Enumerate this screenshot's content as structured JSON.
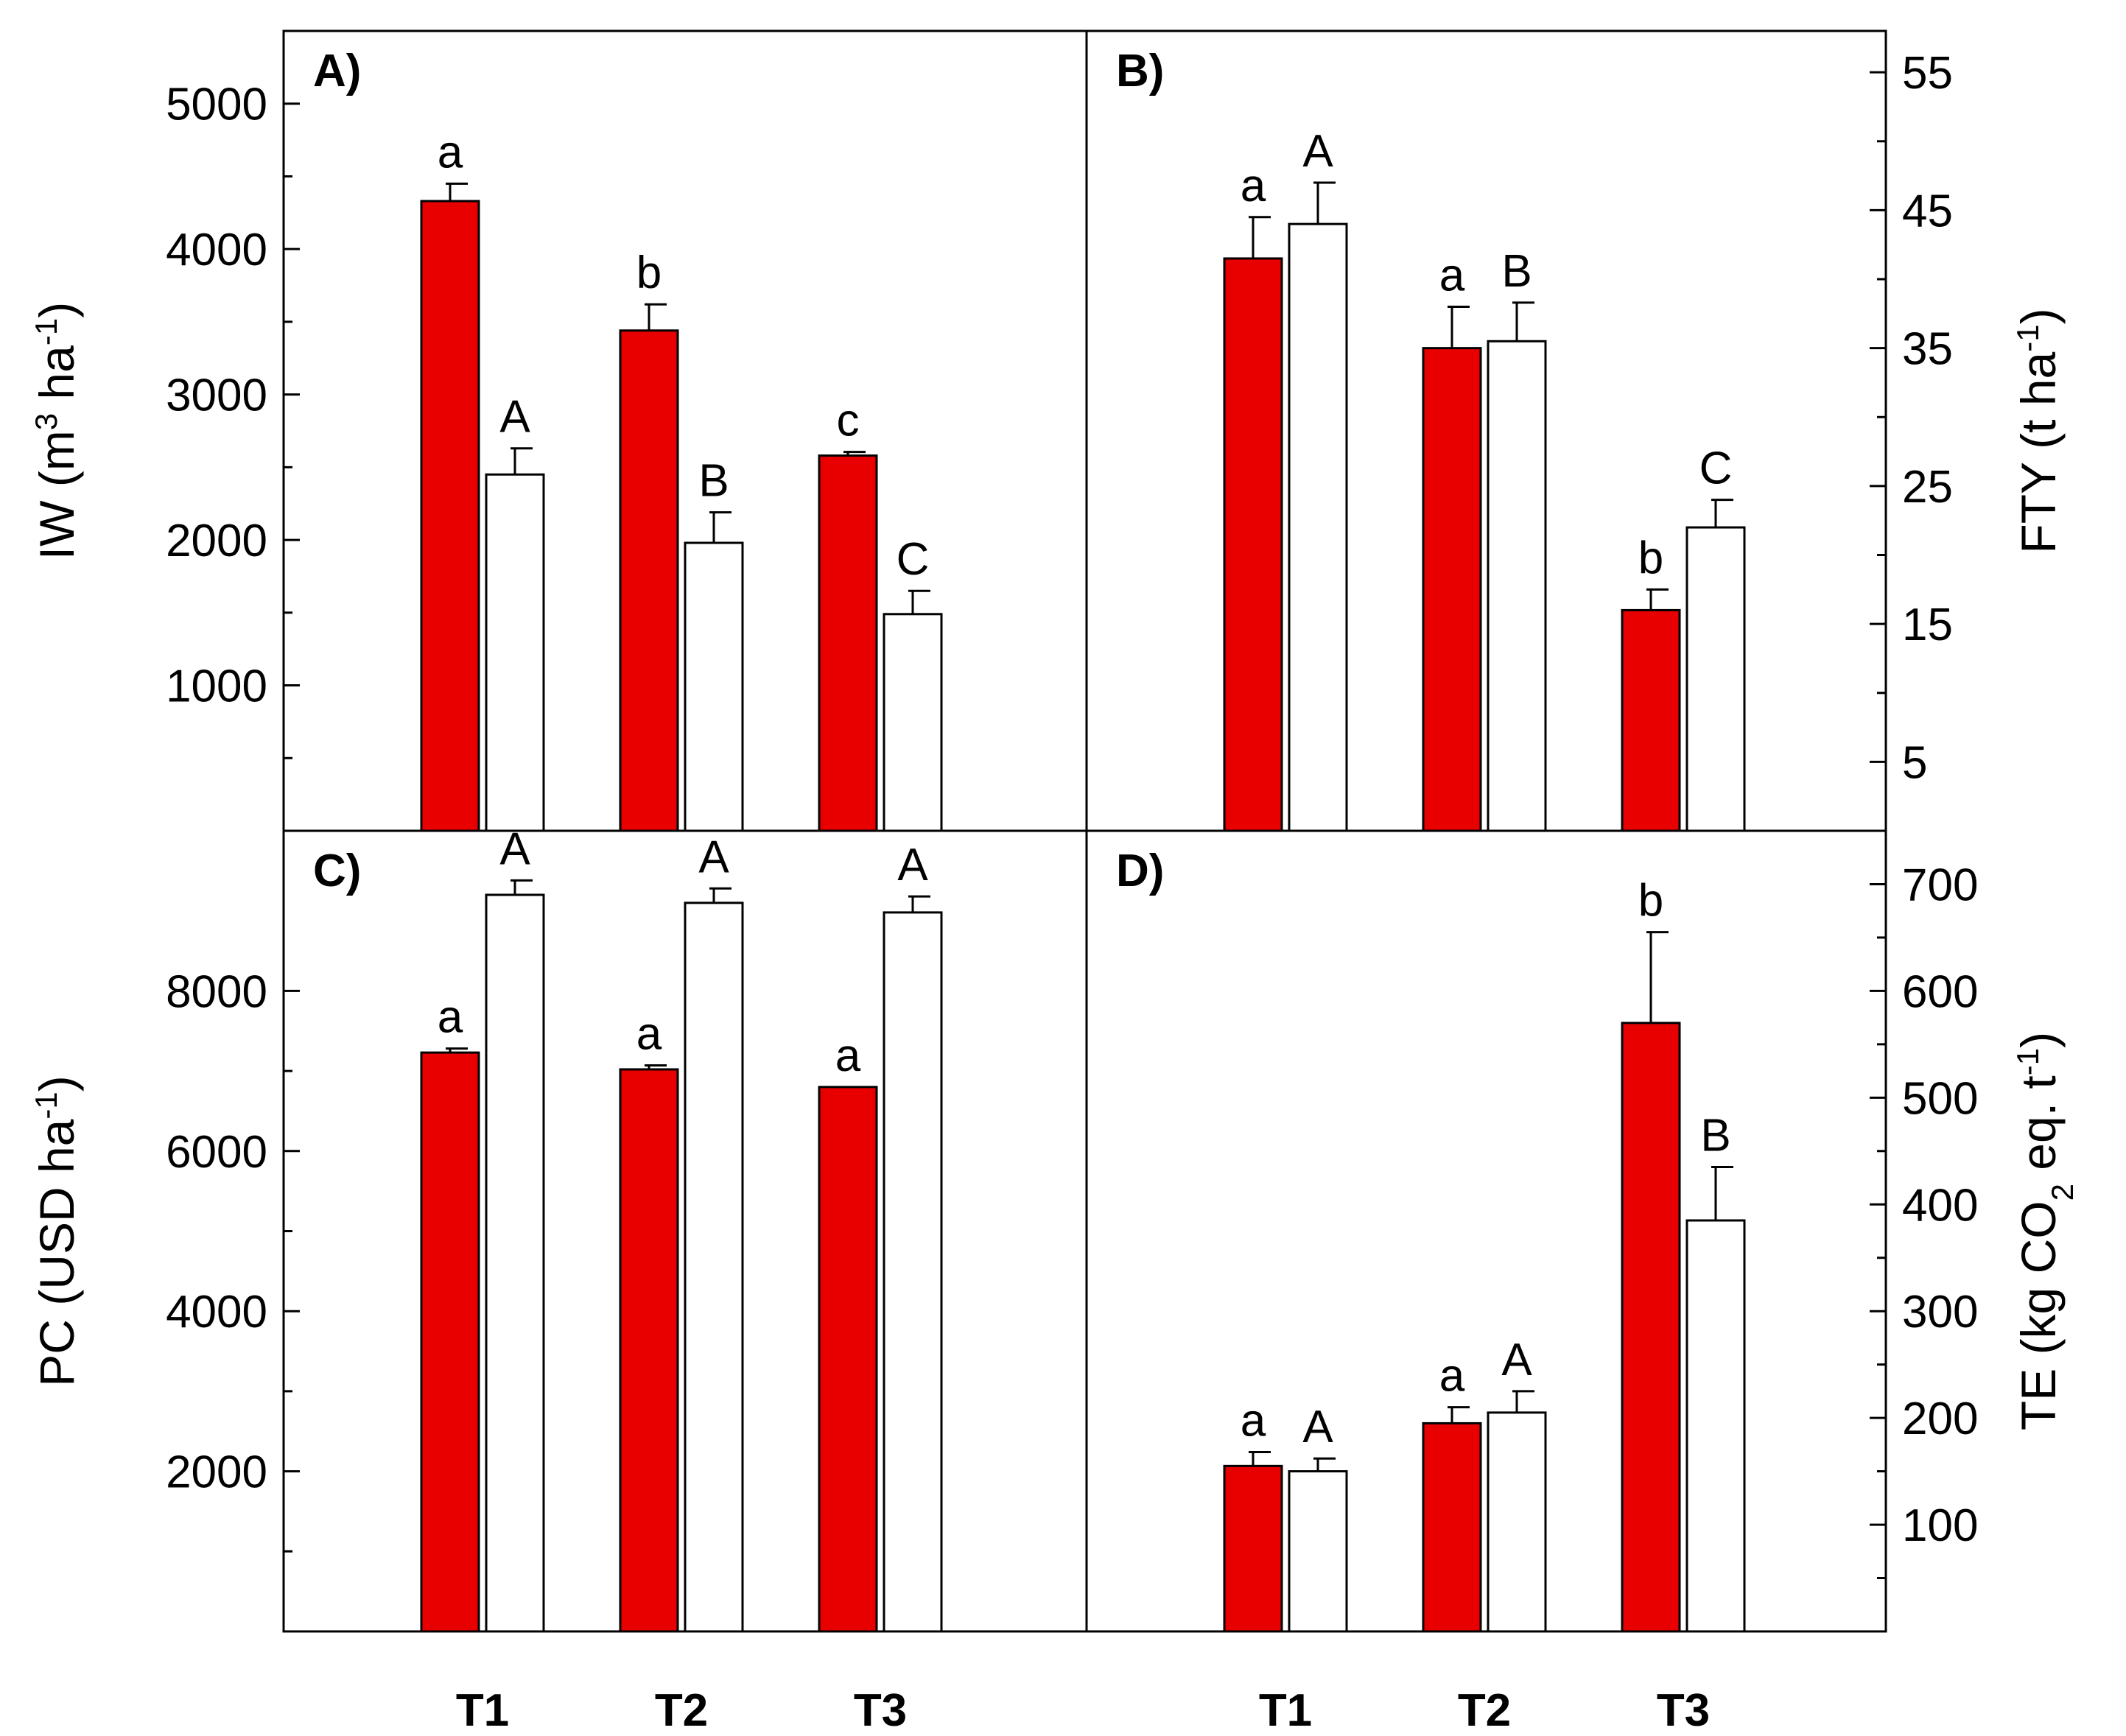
{
  "chart_data": [
    {
      "id": "A",
      "type": "bar",
      "panel_label": "A)",
      "ylabel": "IW (m³ ha⁻¹)",
      "ylabel_parts": [
        "IW (m",
        "3",
        " ha",
        "-1",
        ")"
      ],
      "yaxis_side": "left",
      "ylim": [
        0,
        5500
      ],
      "yticks": [
        "1000",
        "2000",
        "3000",
        "4000",
        "5000"
      ],
      "categories": [
        "T1",
        "T2",
        "T3"
      ],
      "series": [
        {
          "name": "red",
          "color": "#e80000",
          "values": [
            4330,
            3440,
            2580
          ],
          "errors": [
            120,
            180,
            25
          ],
          "letters": [
            "a",
            "b",
            "c"
          ]
        },
        {
          "name": "white",
          "color": "#ffffff",
          "values": [
            2450,
            1980,
            1490
          ],
          "errors": [
            180,
            210,
            160
          ],
          "letters": [
            "A",
            "B",
            "C"
          ]
        }
      ]
    },
    {
      "id": "B",
      "type": "bar",
      "panel_label": "B)",
      "ylabel": "FTY (t ha⁻¹)",
      "ylabel_parts": [
        "FTY (t ha",
        "-1",
        ")"
      ],
      "yaxis_side": "right",
      "ylim": [
        0,
        58
      ],
      "yticks": [
        "5",
        "15",
        "25",
        "35",
        "45",
        "55"
      ],
      "categories": [
        "T1",
        "T2",
        "T3"
      ],
      "series": [
        {
          "name": "red",
          "color": "#e80000",
          "values": [
            41.5,
            35.0,
            16.0
          ],
          "errors": [
            3.0,
            3.0,
            1.5
          ],
          "letters": [
            "a",
            "a",
            "b"
          ]
        },
        {
          "name": "white",
          "color": "#ffffff",
          "values": [
            44.0,
            35.5,
            22.0
          ],
          "errors": [
            3.0,
            2.8,
            2.0
          ],
          "letters": [
            "A",
            "B",
            "C"
          ]
        }
      ]
    },
    {
      "id": "C",
      "type": "bar",
      "panel_label": "C)",
      "ylabel": "PC (USD ha⁻¹)",
      "ylabel_parts": [
        "PC (USD ha",
        "-1",
        ")"
      ],
      "yaxis_side": "left",
      "ylim": [
        0,
        10000
      ],
      "yticks": [
        "2000",
        "4000",
        "6000",
        "8000"
      ],
      "categories": [
        "T1",
        "T2",
        "T3"
      ],
      "series": [
        {
          "name": "red",
          "color": "#e80000",
          "values": [
            7230,
            7020,
            6800
          ],
          "errors": [
            50,
            50,
            0
          ],
          "letters": [
            "a",
            "a",
            "a"
          ]
        },
        {
          "name": "white",
          "color": "#ffffff",
          "values": [
            9200,
            9100,
            8980
          ],
          "errors": [
            180,
            180,
            200
          ],
          "letters": [
            "A",
            "A",
            "A"
          ]
        }
      ]
    },
    {
      "id": "D",
      "type": "bar",
      "panel_label": "D)",
      "ylabel": "TE (kg CO₂ eq. t⁻¹)",
      "ylabel_parts": [
        "TE (kg CO",
        "2",
        " eq. t",
        "-1",
        ")"
      ],
      "yaxis_side": "right",
      "ylim": [
        0,
        750
      ],
      "yticks": [
        "100",
        "200",
        "300",
        "400",
        "500",
        "600",
        "700"
      ],
      "categories": [
        "T1",
        "T2",
        "T3"
      ],
      "series": [
        {
          "name": "red",
          "color": "#e80000",
          "values": [
            155,
            195,
            570
          ],
          "errors": [
            13,
            15,
            85
          ],
          "letters": [
            "a",
            "a",
            "b"
          ]
        },
        {
          "name": "white",
          "color": "#ffffff",
          "values": [
            150,
            205,
            385
          ],
          "errors": [
            12,
            20,
            50
          ],
          "letters": [
            "A",
            "A",
            "B"
          ]
        }
      ]
    }
  ],
  "colors": {
    "red_bar": "#e80000",
    "white_bar": "#ffffff",
    "axis": "#000000"
  }
}
